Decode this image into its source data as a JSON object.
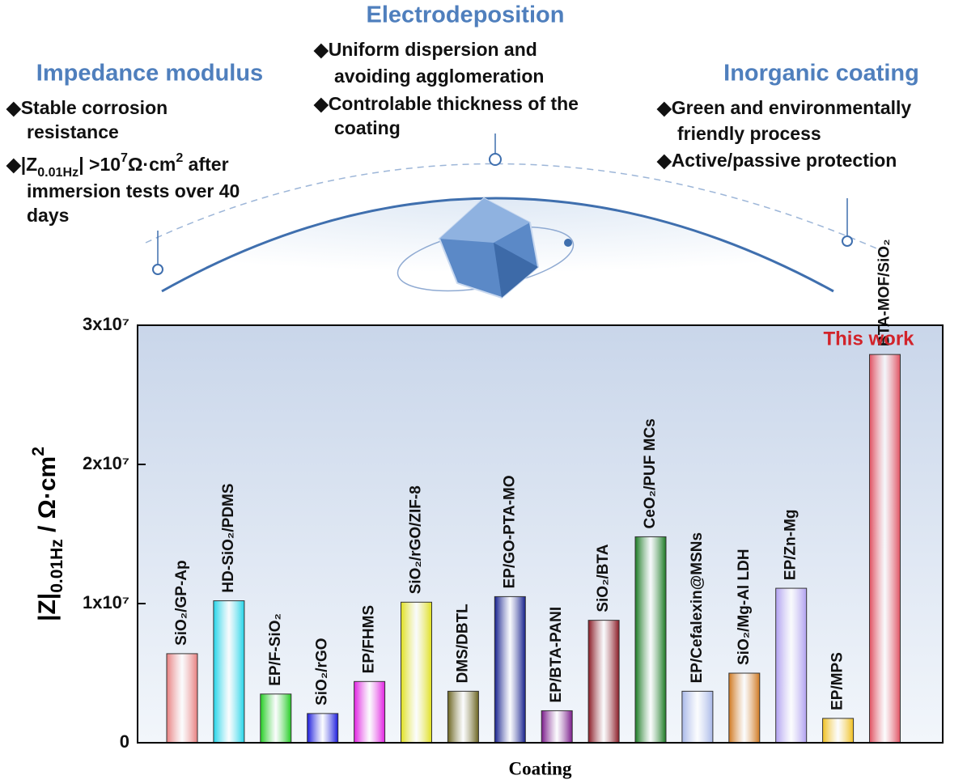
{
  "panels": [
    {
      "title": "Impedance modulus",
      "bullets": [
        [
          "◆Stable corrosion",
          "resistance"
        ],
        [
          [
            "◆|Z",
            {
              "sub": "0.01Hz"
            },
            "| >10",
            {
              "sup": "7"
            },
            "Ω·cm",
            {
              "sup": "2"
            },
            " after"
          ],
          "immersion tests over 40",
          "days"
        ]
      ]
    },
    {
      "title": "Electrodeposition",
      "bullets": [
        [
          "◆Uniform dispersion and",
          "avoiding agglomeration"
        ],
        [
          "◆Controlable thickness of the",
          "coating"
        ]
      ]
    },
    {
      "title": "Inorganic coating",
      "bullets": [
        [
          "◆Green and environmentally",
          "friendly process"
        ],
        [
          "◆Active/passive protection"
        ]
      ]
    }
  ],
  "chart_data": {
    "type": "bar",
    "xlabel": "Coating",
    "ylabel": [
      "|Z|",
      {
        "sub": "0.01Hz"
      },
      " / Ω·cm",
      {
        "sup": "2"
      }
    ],
    "annotation": "This work",
    "categories": [
      "SiO₂/GP-Ap",
      "HD-SiO₂/PDMS",
      "EP/F-SiO₂",
      "SiO₂/rGO",
      "EP/FHMS",
      "SiO₂/rGO/ZIF-8",
      "DMS/DBTL",
      "EP/GO-PTA-MO",
      "EP/BTA-PANI",
      "SiO₂/BTA",
      "CeO₂/PUF MCs",
      "EP/Cefalexin@MSNs",
      "SiO₂/Mg-Al LDH",
      "EP/Zn-Mg",
      "EP/MPS",
      "BTA-MOF/SiO₂"
    ],
    "values": [
      6400000,
      10200000,
      3500000,
      2100000,
      4400000,
      10100000,
      3700000,
      10500000,
      2300000,
      8800000,
      14800000,
      3700000,
      5000000,
      11100000,
      1750000,
      27900000
    ],
    "colors": [
      "#e87f7f",
      "#22d4e8",
      "#22cc22",
      "#1a1adc",
      "#e020e0",
      "#e0e020",
      "#6b6420",
      "#141e8c",
      "#7a1a8a",
      "#8a1a24",
      "#1a7a22",
      "#a8b8e8",
      "#d07820",
      "#b0a0f0",
      "#f0c020",
      "#e05060"
    ],
    "ylim": [
      0,
      30000000
    ],
    "yticks": [
      0,
      {
        "value": 10000000,
        "label": "1x10⁷"
      },
      {
        "value": 20000000,
        "label": "2x10⁷"
      },
      {
        "value": 30000000,
        "label": "3x10⁷"
      }
    ]
  }
}
